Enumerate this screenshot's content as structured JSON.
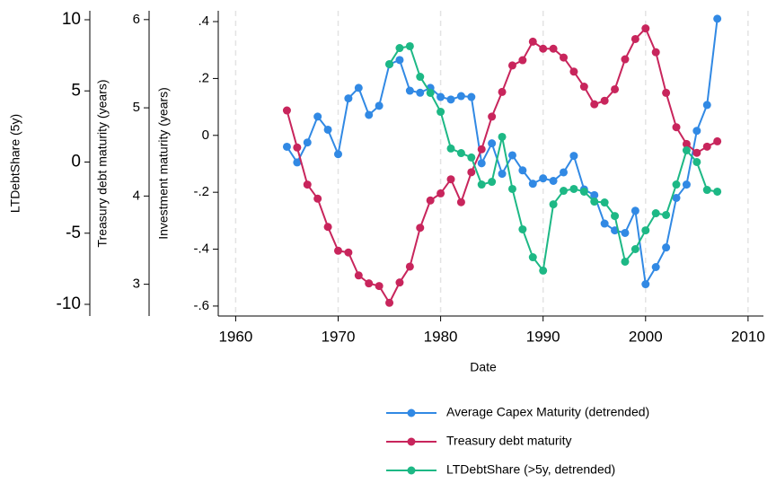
{
  "chart_data": {
    "type": "line",
    "xlabel": "Date",
    "ylabel": "Investment maturity (years)",
    "y2label": "Treasury debt maturity (years)",
    "y3label": "LTDebtShare (5y)",
    "xlim": [
      1958.3,
      2011.5
    ],
    "xticks": [
      1960,
      1970,
      1980,
      1990,
      2000,
      2010
    ],
    "ylim": [
      -0.635,
      0.438
    ],
    "yticks": [
      {
        "value": 0.4,
        "label": ".4"
      },
      {
        "value": 0.2,
        "label": ".2"
      },
      0,
      {
        "value": -0.2,
        "label": "-.2"
      },
      {
        "value": -0.4,
        "label": "-.4"
      },
      {
        "value": -0.6,
        "label": "-.6"
      }
    ],
    "y2lim": [
      2.64,
      6.1
    ],
    "y2ticks": [
      3,
      4,
      5,
      6
    ],
    "y3lim": [
      -10.82,
      10.63
    ],
    "y3ticks": [
      -10,
      -5,
      0,
      5,
      10
    ],
    "grid": true,
    "legend": "bottom",
    "series": [
      {
        "name": "Average Capex Maturity (detrended)",
        "color": "#3189e4",
        "axis": "y",
        "x": [
          1965,
          1966,
          1967,
          1968,
          1969,
          1970,
          1971,
          1972,
          1973,
          1974,
          1975,
          1976,
          1977,
          1978,
          1979,
          1980,
          1981,
          1982,
          1983,
          1984,
          1985,
          1986,
          1987,
          1988,
          1989,
          1990,
          1991,
          1992,
          1993,
          1994,
          1995,
          1996,
          1997,
          1998,
          1999,
          2000,
          2001,
          2002,
          2003,
          2004,
          2005,
          2006,
          2007
        ],
        "values": [
          -0.04,
          -0.095,
          -0.025,
          0.066,
          0.02,
          -0.066,
          0.13,
          0.167,
          0.072,
          0.104,
          0.25,
          0.265,
          0.157,
          0.15,
          0.167,
          0.135,
          0.126,
          0.138,
          0.135,
          -0.098,
          -0.028,
          -0.135,
          -0.07,
          -0.123,
          -0.17,
          -0.151,
          -0.16,
          -0.13,
          -0.072,
          -0.19,
          -0.21,
          -0.31,
          -0.334,
          -0.343,
          -0.265,
          -0.523,
          -0.463,
          -0.394,
          -0.22,
          -0.173,
          0.016,
          0.107,
          0.41
        ]
      },
      {
        "name": "Treasury debt maturity",
        "color": "#c8255c",
        "axis": "y2",
        "x": [
          1965,
          1966,
          1967,
          1968,
          1969,
          1970,
          1971,
          1972,
          1973,
          1974,
          1975,
          1976,
          1977,
          1978,
          1979,
          1980,
          1981,
          1982,
          1983,
          1984,
          1985,
          1986,
          1987,
          1988,
          1989,
          1990,
          1991,
          1992,
          1993,
          1994,
          1995,
          1996,
          1997,
          1998,
          1999,
          2000,
          2001,
          2002,
          2003,
          2004,
          2005,
          2006,
          2007
        ],
        "values": [
          4.97,
          4.55,
          4.13,
          3.97,
          3.65,
          3.38,
          3.36,
          3.1,
          3.01,
          2.98,
          2.79,
          3.02,
          3.2,
          3.64,
          3.95,
          4.03,
          4.19,
          3.93,
          4.27,
          4.53,
          4.9,
          5.18,
          5.48,
          5.54,
          5.75,
          5.67,
          5.67,
          5.57,
          5.41,
          5.24,
          5.04,
          5.08,
          5.21,
          5.55,
          5.78,
          5.9,
          5.63,
          5.17,
          4.78,
          4.59,
          4.49,
          4.56,
          4.62
        ]
      },
      {
        "name": "LTDebtShare (>5y, detrended)",
        "color": "#1db885",
        "axis": "y3",
        "x": [
          1975,
          1976,
          1977,
          1978,
          1979,
          1980,
          1981,
          1982,
          1983,
          1984,
          1985,
          1986,
          1987,
          1988,
          1989,
          1990,
          1991,
          1992,
          1993,
          1994,
          1995,
          1996,
          1997,
          1998,
          1999,
          2000,
          2001,
          2002,
          2003,
          2004,
          2005,
          2006,
          2007
        ],
        "values": [
          6.88,
          8.01,
          8.14,
          5.99,
          4.86,
          3.53,
          0.95,
          0.63,
          0.32,
          -1.58,
          -1.39,
          1.77,
          -1.89,
          -4.73,
          -6.69,
          -7.63,
          -2.97,
          -2.02,
          -1.89,
          -2.08,
          -2.78,
          -2.84,
          -3.79,
          -7.0,
          -6.12,
          -4.8,
          -3.6,
          -3.72,
          -1.58,
          0.82,
          0,
          -1.96,
          -2.08
        ]
      }
    ]
  }
}
